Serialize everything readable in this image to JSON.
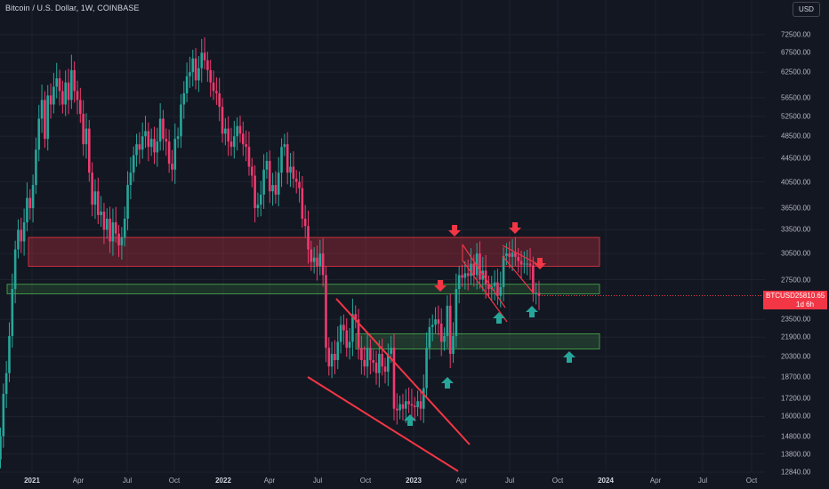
{
  "header": {
    "title": "Bitcoin / U.S. Dollar, 1W, COINBASE",
    "currency_button": "USD"
  },
  "price_axis": {
    "labels": [
      "72500.00",
      "67500.00",
      "62500.00",
      "56500.00",
      "52500.00",
      "48500.00",
      "44500.00",
      "40500.00",
      "36500.00",
      "33500.00",
      "30500.00",
      "27500.00",
      "23500.00",
      "21900.00",
      "20300.00",
      "18700.00",
      "17200.00",
      "16000.00",
      "14800.00",
      "13800.00",
      "12840.00"
    ]
  },
  "time_axis": {
    "labels": [
      {
        "text": "2021",
        "year": true
      },
      {
        "text": "Apr",
        "year": false
      },
      {
        "text": "Jul",
        "year": false
      },
      {
        "text": "Oct",
        "year": false
      },
      {
        "text": "2022",
        "year": true
      },
      {
        "text": "Apr",
        "year": false
      },
      {
        "text": "Jul",
        "year": false
      },
      {
        "text": "Oct",
        "year": false
      },
      {
        "text": "2023",
        "year": true
      },
      {
        "text": "Apr",
        "year": false
      },
      {
        "text": "Jul",
        "year": false
      },
      {
        "text": "Oct",
        "year": false
      },
      {
        "text": "2024",
        "year": true
      },
      {
        "text": "Apr",
        "year": false
      },
      {
        "text": "Jul",
        "year": false
      },
      {
        "text": "Oct",
        "year": false
      }
    ]
  },
  "current_price": {
    "symbol": "BTCUSD",
    "value": "25810.65",
    "countdown": "1d 6h"
  },
  "colors": {
    "background": "#131722",
    "up": "#26a69a",
    "down": "#ef3a6f",
    "resistance_zone": "#f23645",
    "support_zone": "#4caf50",
    "trendline": "#f23645"
  },
  "chart_data": {
    "type": "candlestick",
    "symbol": "BTCUSD",
    "interval": "1W",
    "exchange": "COINBASE",
    "y_scale": "log",
    "ylim": [
      12840,
      72500
    ],
    "zones": [
      {
        "name": "resistance",
        "low": 29000,
        "high": 32500
      },
      {
        "name": "support-upper",
        "low": 26000,
        "high": 27000
      },
      {
        "name": "support-lower",
        "low": 20900,
        "high": 22200
      }
    ],
    "annotations": [
      {
        "type": "arrow-down",
        "color": "red",
        "near_price": 34000
      },
      {
        "type": "arrow-down",
        "color": "red",
        "near_price": 27500
      },
      {
        "type": "arrow-down",
        "color": "red",
        "near_price": 34000
      },
      {
        "type": "arrow-down",
        "color": "red",
        "near_price": 29500
      },
      {
        "type": "arrow-up",
        "color": "green",
        "near_price": 16300
      },
      {
        "type": "arrow-up",
        "color": "green",
        "near_price": 18800
      },
      {
        "type": "arrow-up",
        "color": "green",
        "near_price": 24000
      },
      {
        "type": "arrow-up",
        "color": "green",
        "near_price": 25000
      },
      {
        "type": "arrow-up",
        "color": "green",
        "near_price": 20400
      }
    ],
    "grid": true
  }
}
